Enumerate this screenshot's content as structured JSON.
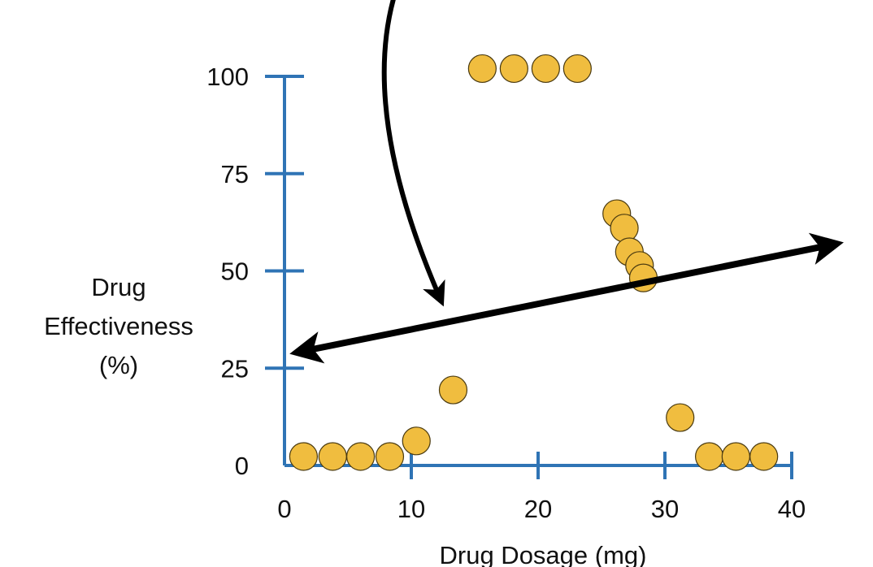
{
  "chart_data": {
    "type": "scatter",
    "title": "",
    "xlabel": "Drug Dosage (mg)",
    "ylabel_lines": [
      "Drug",
      "Effectiveness",
      "(%)"
    ],
    "xlim": [
      0,
      40
    ],
    "ylim": [
      0,
      100
    ],
    "xticks": [
      "0",
      "10",
      "20",
      "30",
      "40"
    ],
    "yticks": [
      "0",
      "25",
      "50",
      "75",
      "100"
    ],
    "xtick_values": [
      0,
      10,
      20,
      30,
      40
    ],
    "ytick_values": [
      0,
      25,
      50,
      75,
      100
    ],
    "grid": false,
    "axis_color": "#2f74b5",
    "point_color": "#f0bd3f",
    "points": [
      {
        "x": 1.5,
        "y": 2.3
      },
      {
        "x": 3.8,
        "y": 2.3
      },
      {
        "x": 6.0,
        "y": 2.3
      },
      {
        "x": 8.3,
        "y": 2.3
      },
      {
        "x": 10.4,
        "y": 6.3
      },
      {
        "x": 13.3,
        "y": 19.4
      },
      {
        "x": 15.6,
        "y": 102
      },
      {
        "x": 18.1,
        "y": 102
      },
      {
        "x": 20.6,
        "y": 102
      },
      {
        "x": 23.1,
        "y": 102
      },
      {
        "x": 26.2,
        "y": 64.7
      },
      {
        "x": 26.8,
        "y": 61
      },
      {
        "x": 27.2,
        "y": 54.9
      },
      {
        "x": 28.0,
        "y": 51.4
      },
      {
        "x": 28.3,
        "y": 48.2
      },
      {
        "x": 31.2,
        "y": 12.3
      },
      {
        "x": 33.5,
        "y": 2.3
      },
      {
        "x": 35.6,
        "y": 2.3
      },
      {
        "x": 37.8,
        "y": 2.3
      }
    ],
    "annotations": {
      "fit_line": {
        "type": "double-arrow",
        "from": [
          0.9,
          29
        ],
        "to": [
          43.6,
          57
        ]
      },
      "curved_arrow": {
        "type": "arrow",
        "from": [
          8.6,
          120
        ],
        "to": [
          12.4,
          42
        ]
      }
    }
  }
}
